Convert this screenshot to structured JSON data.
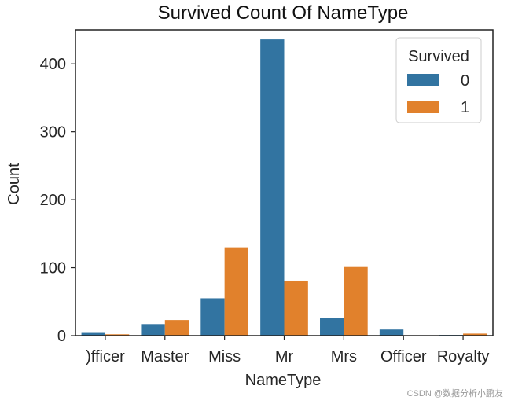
{
  "chart_data": {
    "type": "bar",
    "title": "Survived Count Of NameType",
    "xlabel": "NameType",
    "ylabel": "Count",
    "categories": [
      ")fficer",
      "Master",
      "Miss",
      "Mr",
      "Mrs",
      "Officer",
      "Royalty"
    ],
    "series": [
      {
        "name": "0",
        "color": "#3274a1",
        "values": [
          4,
          17,
          55,
          436,
          26,
          9,
          1
        ]
      },
      {
        "name": "1",
        "color": "#e1812c",
        "values": [
          2,
          23,
          130,
          81,
          101,
          0,
          3
        ]
      }
    ],
    "ylim": [
      0,
      450
    ],
    "yticks": [
      0,
      100,
      200,
      300,
      400
    ],
    "legend": {
      "title": "Survived",
      "placement": "top-right"
    },
    "grid": false
  },
  "watermark": "CSDN @数据分析小鹏友"
}
